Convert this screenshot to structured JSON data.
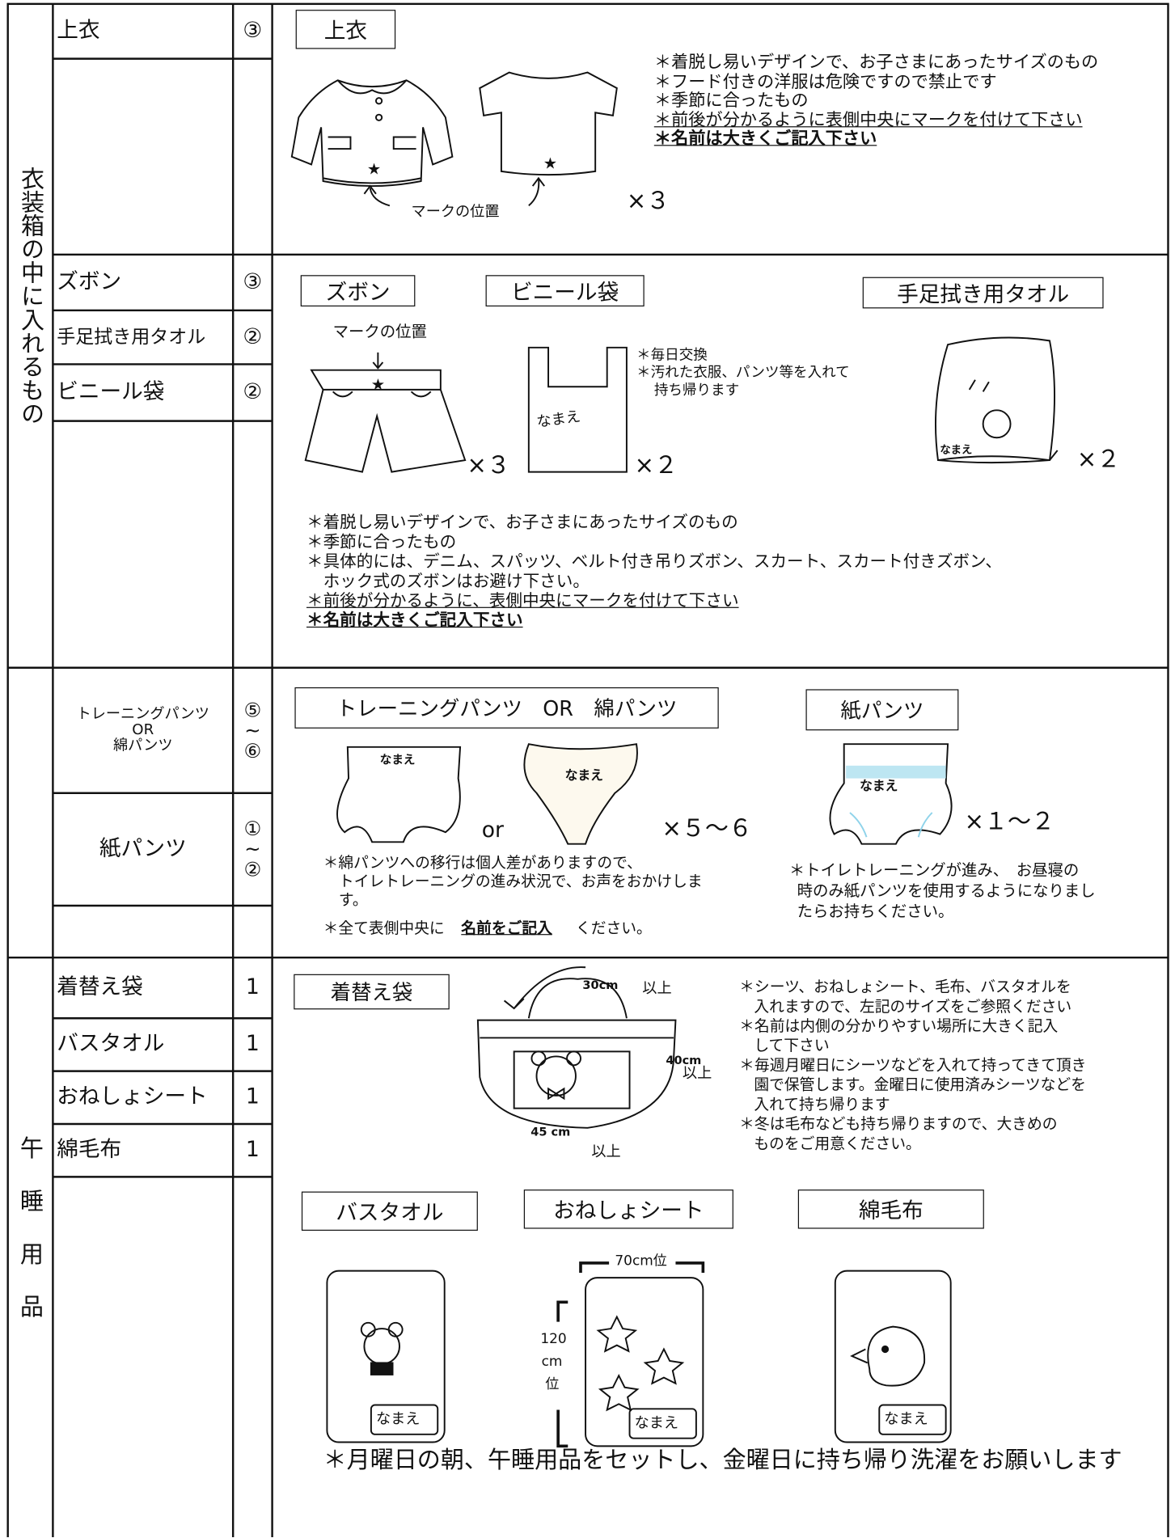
{
  "clothing": {
    "label": "衣装箱の中に入れるもの",
    "items": [
      {
        "name": "上衣",
        "qty": "③"
      },
      {
        "name": "ズボン",
        "qty": "③"
      },
      {
        "name": "手足拭き用タオル",
        "qty": "②"
      },
      {
        "name": "ビニール袋",
        "qty": "②"
      }
    ],
    "top": {
      "heading": "上衣",
      "mark_label": "マークの位置",
      "count": "×３",
      "notes": [
        "＊着脱し易いデザインで、お子さまにあったサイズのもの",
        "＊フード付きの洋服は危険ですので禁止です",
        "＊季節に合ったもの",
        "＊前後が分かるように表側中央にマークを付けて下さい",
        "＊名前は大きくご記入下さい"
      ]
    },
    "bottom": {
      "headings": [
        "ズボン",
        "ビニール袋",
        "手足拭き用タオル"
      ],
      "mark_label": "マークの位置",
      "counts": [
        "×３",
        "×２",
        "×２"
      ],
      "name_tags": [
        "なまえ",
        "なまえ"
      ],
      "bag_notes": [
        "＊毎日交換",
        "＊汚れた衣服、パンツ等を入れて",
        "持ち帰ります"
      ],
      "notes": [
        "＊着脱し易いデザインで、お子さまにあったサイズのもの",
        "＊季節に合ったもの",
        "＊具体的には、デニム、スパッツ、ベルト付き吊りズボン、スカート、スカート付きズボン、",
        "ホック式のズボンはお避け下さい。",
        "＊前後が分かるように、表側中央にマークを付けて下さい",
        "＊名前は大きくご記入下さい"
      ]
    }
  },
  "pants": {
    "items": [
      {
        "name": [
          "トレーニングパンツ",
          "OR",
          "綿パンツ"
        ],
        "qty": [
          "⑤",
          "~",
          "⑥"
        ]
      },
      {
        "name": [
          "紙パンツ"
        ],
        "qty": [
          "①",
          "~",
          "②"
        ]
      }
    ],
    "headings": [
      "トレーニングパンツ　OR　綿パンツ",
      "紙パンツ"
    ],
    "name_tags": [
      "なまえ",
      "なまえ",
      "なまえ"
    ],
    "or": "or",
    "counts": [
      "×５～６",
      "×１～２"
    ],
    "left_notes": [
      "＊綿パンツへの移行は個人差がありますので、",
      "トイレトレーニングの進み状況で、お声をおかけしま",
      "す。"
    ],
    "left_note_last": [
      "＊全て表側中央に",
      "名前をご記入",
      "ください。"
    ],
    "right_notes": [
      "＊トイレトレーニングが進み、　お昼寝の",
      "時のみ紙パンツを使用するようになりまし",
      "たらお持ちください。"
    ]
  },
  "nap": {
    "label": "午睡用品",
    "items": [
      {
        "name": "着替え袋",
        "qty": "1"
      },
      {
        "name": "バスタオル",
        "qty": "1"
      },
      {
        "name": "おねしょシート",
        "qty": "1"
      },
      {
        "name": "綿毛布",
        "qty": "1"
      }
    ],
    "bag": {
      "heading": "着替え袋",
      "dims": [
        "30cm",
        "以上",
        "40cm",
        "以上",
        "45 cm",
        "以上"
      ],
      "notes": [
        "＊シーツ、おねしょシート、毛布、バスタオルを",
        "入れますので、左記のサイズをご参照ください",
        "＊名前は内側の分かりやすい場所に大きく記入",
        "して下さい",
        "＊毎週月曜日にシーツなどを入れて持ってきて頂き",
        "園で保管します。金曜日に使用済みシーツなどを",
        "入れて持ち帰ります",
        "＊冬は毛布なども持ち帰りますので、大きめの",
        "ものをご用意ください。"
      ]
    },
    "headings": [
      "バスタオル",
      "おねしょシート",
      "綿毛布"
    ],
    "sheet_dims": [
      "70cm位",
      "120",
      "cm",
      "位"
    ],
    "name_tags": [
      "なまえ",
      "なまえ",
      "なまえ"
    ],
    "footer": "＊月曜日の朝、午睡用品をセットし、金曜日に持ち帰り洗濯をお願いします"
  }
}
